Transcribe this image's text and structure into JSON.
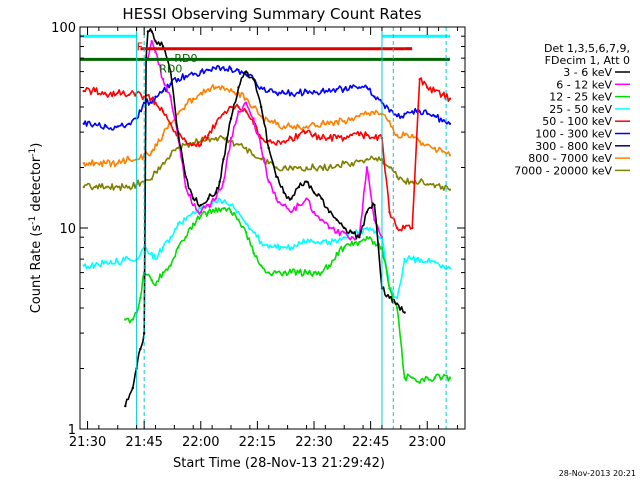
{
  "chart_data": {
    "type": "line",
    "title": "HESSI Observing Summary Count Rates",
    "ylabel": "Count Rate (s",
    "ylabel_sup": "-1",
    "ylabel_tail": " detector",
    "ylabel_sup2": "-1",
    "ylabel_close": ")",
    "xlabel": "Start Time (28-Nov-13 21:29:42)",
    "timestamp": "28-Nov-2013 20:21",
    "y_scale": "log",
    "ylim": [
      1,
      100
    ],
    "xlim": [
      "21:28",
      "23:10"
    ],
    "x_tick_labels": [
      "21:30",
      "21:45",
      "22:00",
      "22:15",
      "22:30",
      "22:45",
      "23:00"
    ],
    "y_tick_labels": [
      "1",
      "10",
      "100"
    ],
    "legend_header": [
      "Det 1,3,5,6,7,9,",
      "FDecim 1, Att 0"
    ],
    "legend_position": "right",
    "annotations": [
      {
        "text": "F",
        "t": "21:43",
        "y": 80,
        "color": "#e00000"
      },
      {
        "text": "RD0",
        "t": "21:53",
        "y": 70,
        "color": "#006400"
      },
      {
        "text": "RD0",
        "t": "21:49",
        "y": 62,
        "color": "#006400"
      }
    ],
    "flag_bars": [
      {
        "name": "saa-bar",
        "color": "#00ffff",
        "y": 90,
        "segments": [
          [
            "21:28",
            "21:43"
          ],
          [
            "22:48",
            "23:06"
          ]
        ]
      },
      {
        "name": "flare-bar",
        "color": "#e00000",
        "y": 78,
        "segments": [
          [
            "21:44",
            "22:54"
          ],
          [
            "22:54",
            "22:56"
          ]
        ]
      },
      {
        "name": "decimation-bar",
        "color": "#006400",
        "y": 69,
        "segments": [
          [
            "21:28",
            "23:06"
          ]
        ]
      }
    ],
    "boundaries": [
      {
        "t": "21:28",
        "style": "solid",
        "color": "#00cccc"
      },
      {
        "t": "21:43",
        "style": "solid",
        "color": "#00cccc"
      },
      {
        "t": "21:45",
        "style": "dashed",
        "color": "#00cccc"
      },
      {
        "t": "22:48",
        "style": "solid",
        "color": "#00cccc"
      },
      {
        "t": "22:51",
        "style": "dashed",
        "color": "#00cccc"
      },
      {
        "t": "23:05",
        "style": "dashed",
        "color": "#00cccc"
      }
    ],
    "gaps": [
      [
        "21:45",
        "21:47"
      ],
      [
        "22:50",
        "22:51"
      ]
    ],
    "series": [
      {
        "name": "3 - 6 keV",
        "color": "#000000",
        "x": [
          "21:40",
          "21:42",
          "21:43",
          "21:44",
          "21:45",
          "21:45:30",
          "21:46",
          "21:47",
          "21:48",
          "21:50",
          "21:52",
          "21:54",
          "21:56",
          "21:58",
          "22:00",
          "22:02",
          "22:04",
          "22:05",
          "22:06",
          "22:08",
          "22:10",
          "22:12",
          "22:14",
          "22:16",
          "22:18",
          "22:20",
          "22:22",
          "22:24",
          "22:26",
          "22:28",
          "22:30",
          "22:32",
          "22:34",
          "22:36",
          "22:38",
          "22:40",
          "22:42",
          "22:44",
          "22:46",
          "22:48",
          "22:50",
          "22:52",
          "22:54"
        ],
        "y": [
          1.3,
          1.6,
          2.0,
          2.5,
          3.0,
          70,
          95,
          95,
          85,
          80,
          60,
          30,
          18,
          14,
          13,
          14,
          15,
          17,
          22,
          35,
          50,
          60,
          55,
          40,
          25,
          18,
          15,
          14,
          16,
          17,
          15,
          14,
          12,
          11,
          10,
          9.5,
          9,
          12,
          13,
          5,
          4.5,
          4.2,
          3.8
        ]
      },
      {
        "name": "6 - 12 keV",
        "color": "#ff00ff",
        "x": [
          "21:46",
          "21:47",
          "21:48",
          "21:50",
          "21:52",
          "21:54",
          "21:56",
          "21:58",
          "22:00",
          "22:02",
          "22:04",
          "22:06",
          "22:08",
          "22:10",
          "22:12",
          "22:14",
          "22:16",
          "22:18",
          "22:20",
          "22:22",
          "22:24",
          "22:26",
          "22:28",
          "22:30",
          "22:32",
          "22:34",
          "22:36",
          "22:38",
          "22:40",
          "22:42",
          "22:44",
          "22:46",
          "22:48"
        ],
        "y": [
          70,
          85,
          75,
          55,
          45,
          28,
          16,
          13,
          12,
          13,
          14,
          17,
          28,
          38,
          42,
          35,
          25,
          17,
          14,
          13,
          12,
          13,
          14,
          12,
          11,
          10,
          9.5,
          9.5,
          9,
          9,
          20,
          11,
          9
        ]
      },
      {
        "name": "12 - 25 keV",
        "color": "#00dd00",
        "x": [
          "21:40",
          "21:42",
          "21:43",
          "21:44",
          "21:45",
          "21:47",
          "21:48",
          "21:50",
          "21:52",
          "21:54",
          "21:56",
          "21:58",
          "22:00",
          "22:02",
          "22:04",
          "22:06",
          "22:08",
          "22:10",
          "22:12",
          "22:14",
          "22:16",
          "22:18",
          "22:20",
          "22:22",
          "22:24",
          "22:26",
          "22:28",
          "22:30",
          "22:32",
          "22:34",
          "22:36",
          "22:38",
          "22:40",
          "22:42",
          "22:44",
          "22:46",
          "22:48",
          "22:50",
          "22:52",
          "22:54",
          "22:56",
          "22:58",
          "23:00",
          "23:02",
          "23:04",
          "23:06"
        ],
        "y": [
          3.5,
          3.5,
          3.8,
          4.5,
          6.0,
          5.5,
          5.2,
          6.0,
          6.5,
          8.0,
          9.0,
          10.5,
          11.5,
          12,
          12.5,
          12.5,
          12,
          11,
          9.5,
          7.5,
          6.5,
          6.0,
          6.0,
          6.0,
          6.0,
          6.0,
          6.0,
          6.0,
          6.0,
          6.5,
          7.5,
          8.0,
          8.5,
          8.5,
          9.0,
          8.5,
          8.0,
          5.0,
          4.0,
          1.8,
          1.8,
          1.7,
          1.8,
          1.8,
          1.8,
          1.8
        ]
      },
      {
        "name": "25 - 50 keV",
        "color": "#00ffff",
        "x": [
          "21:29",
          "21:32",
          "21:35",
          "21:38",
          "21:41",
          "21:43",
          "21:45",
          "21:47",
          "21:48",
          "21:50",
          "21:52",
          "21:54",
          "21:56",
          "21:58",
          "22:00",
          "22:02",
          "22:04",
          "22:06",
          "22:08",
          "22:10",
          "22:12",
          "22:14",
          "22:16",
          "22:18",
          "22:20",
          "22:22",
          "22:24",
          "22:26",
          "22:28",
          "22:30",
          "22:32",
          "22:34",
          "22:36",
          "22:38",
          "22:40",
          "22:42",
          "22:44",
          "22:46",
          "22:48",
          "22:50",
          "22:52",
          "22:54",
          "22:56",
          "22:58",
          "23:00",
          "23:02",
          "23:04",
          "23:06"
        ],
        "y": [
          6.5,
          6.5,
          6.8,
          6.8,
          7.0,
          7.0,
          8.0,
          7.5,
          7.0,
          8.0,
          9.0,
          10.5,
          11,
          12,
          12.5,
          13,
          13.5,
          13.5,
          13,
          12,
          10.5,
          9.5,
          8.5,
          8.0,
          8.0,
          8.0,
          8.0,
          8.5,
          8.5,
          8.5,
          8.5,
          8.5,
          8.5,
          9.0,
          9.5,
          9.5,
          10,
          9.5,
          9.0,
          5.0,
          4.5,
          7.0,
          7.0,
          6.8,
          6.8,
          6.8,
          6.5,
          6.3
        ]
      },
      {
        "name": "50 - 100 keV",
        "color": "#ff0000",
        "x": [
          "21:29",
          "21:32",
          "21:35",
          "21:38",
          "21:41",
          "21:43",
          "21:45",
          "21:47",
          "21:48",
          "21:50",
          "21:52",
          "21:54",
          "21:56",
          "21:58",
          "22:00",
          "22:02",
          "22:04",
          "22:06",
          "22:08",
          "22:10",
          "22:12",
          "22:14",
          "22:16",
          "22:18",
          "22:20",
          "22:22",
          "22:24",
          "22:26",
          "22:28",
          "22:30",
          "22:32",
          "22:34",
          "22:36",
          "22:38",
          "22:40",
          "22:42",
          "22:44",
          "22:46",
          "22:48",
          "22:50",
          "22:52",
          "22:54",
          "22:56",
          "22:58",
          "23:00",
          "23:02",
          "23:04",
          "23:06"
        ],
        "y": [
          48,
          48,
          46,
          47,
          46,
          47,
          45,
          44,
          42,
          38,
          33,
          29,
          27,
          26,
          26,
          29,
          33,
          37,
          40,
          40,
          38,
          33,
          28,
          27,
          26,
          27,
          28,
          29,
          30,
          29,
          28,
          28,
          28,
          28,
          29,
          29,
          29,
          28,
          28,
          12,
          10,
          10,
          10,
          55,
          50,
          48,
          46,
          44
        ]
      },
      {
        "name": "100 - 300 keV",
        "color": "#0000ff",
        "x": [
          "21:29",
          "21:32",
          "21:35",
          "21:38",
          "21:41",
          "21:43",
          "21:45",
          "21:47",
          "21:48",
          "21:50",
          "21:52",
          "21:54",
          "21:56",
          "21:58",
          "22:00",
          "22:02",
          "22:04",
          "22:06",
          "22:08",
          "22:10",
          "22:12",
          "22:14",
          "22:16",
          "22:18",
          "22:20",
          "22:22",
          "22:24",
          "22:26",
          "22:28",
          "22:30",
          "22:32",
          "22:34",
          "22:36",
          "22:38",
          "22:40",
          "22:42",
          "22:44",
          "22:46",
          "22:48",
          "22:50",
          "22:52",
          "22:54",
          "22:56",
          "22:58",
          "23:00",
          "23:02",
          "23:04",
          "23:06"
        ],
        "y": [
          33,
          33,
          32,
          32,
          33,
          35,
          42,
          42,
          45,
          48,
          52,
          55,
          57,
          58,
          60,
          61,
          62,
          63,
          62,
          61,
          58,
          55,
          50,
          48,
          47,
          47,
          47,
          47,
          48,
          48,
          48,
          49,
          49,
          49,
          50,
          50,
          50,
          45,
          42,
          38,
          36,
          37,
          38,
          38,
          37,
          36,
          34,
          33
        ]
      },
      {
        "name": "300 - 800 keV",
        "color": "#000080",
        "x": [],
        "y": []
      },
      {
        "name": "800 - 7000 keV",
        "color": "#ff8000",
        "x": [
          "21:29",
          "21:32",
          "21:35",
          "21:38",
          "21:41",
          "21:43",
          "21:45",
          "21:47",
          "21:48",
          "21:50",
          "21:52",
          "21:54",
          "21:56",
          "21:58",
          "22:00",
          "22:02",
          "22:04",
          "22:06",
          "22:08",
          "22:10",
          "22:12",
          "22:14",
          "22:16",
          "22:18",
          "22:20",
          "22:22",
          "22:24",
          "22:26",
          "22:28",
          "22:30",
          "22:32",
          "22:34",
          "22:36",
          "22:38",
          "22:40",
          "22:42",
          "22:44",
          "22:46",
          "22:48",
          "22:50",
          "22:52",
          "22:54",
          "22:56",
          "22:58",
          "23:00",
          "23:02",
          "23:04",
          "23:06"
        ],
        "y": [
          21,
          21,
          21,
          21,
          22,
          22,
          23,
          24,
          26,
          29,
          33,
          37,
          41,
          44,
          47,
          49,
          50,
          50,
          49,
          47,
          44,
          40,
          36,
          34,
          33,
          32,
          32,
          32,
          32,
          33,
          33,
          33,
          34,
          34,
          35,
          36,
          37,
          37,
          37,
          34,
          29,
          29,
          29,
          27,
          26,
          25,
          24,
          23
        ]
      },
      {
        "name": "7000 - 20000 keV",
        "color": "#808000",
        "x": [
          "21:29",
          "21:32",
          "21:35",
          "21:38",
          "21:41",
          "21:43",
          "21:45",
          "21:47",
          "21:48",
          "21:50",
          "21:52",
          "21:54",
          "21:56",
          "21:58",
          "22:00",
          "22:02",
          "22:04",
          "22:06",
          "22:08",
          "22:10",
          "22:12",
          "22:14",
          "22:16",
          "22:18",
          "22:20",
          "22:22",
          "22:24",
          "22:26",
          "22:28",
          "22:30",
          "22:32",
          "22:34",
          "22:36",
          "22:38",
          "22:40",
          "22:42",
          "22:44",
          "22:46",
          "22:48",
          "22:50",
          "22:52",
          "22:54",
          "22:56",
          "22:58",
          "23:00",
          "23:02",
          "23:04",
          "23:06"
        ],
        "y": [
          16,
          16,
          16,
          16,
          16,
          16.5,
          17,
          17.5,
          19,
          21,
          23,
          25,
          26,
          26.5,
          27,
          28,
          28,
          28,
          27,
          26,
          25,
          23,
          22,
          21,
          20,
          20,
          20,
          20,
          20,
          20,
          20,
          20,
          20.5,
          21,
          21,
          21.5,
          22,
          22,
          22,
          20,
          18,
          17,
          17,
          17,
          16.5,
          16,
          16,
          15.5
        ]
      }
    ]
  }
}
